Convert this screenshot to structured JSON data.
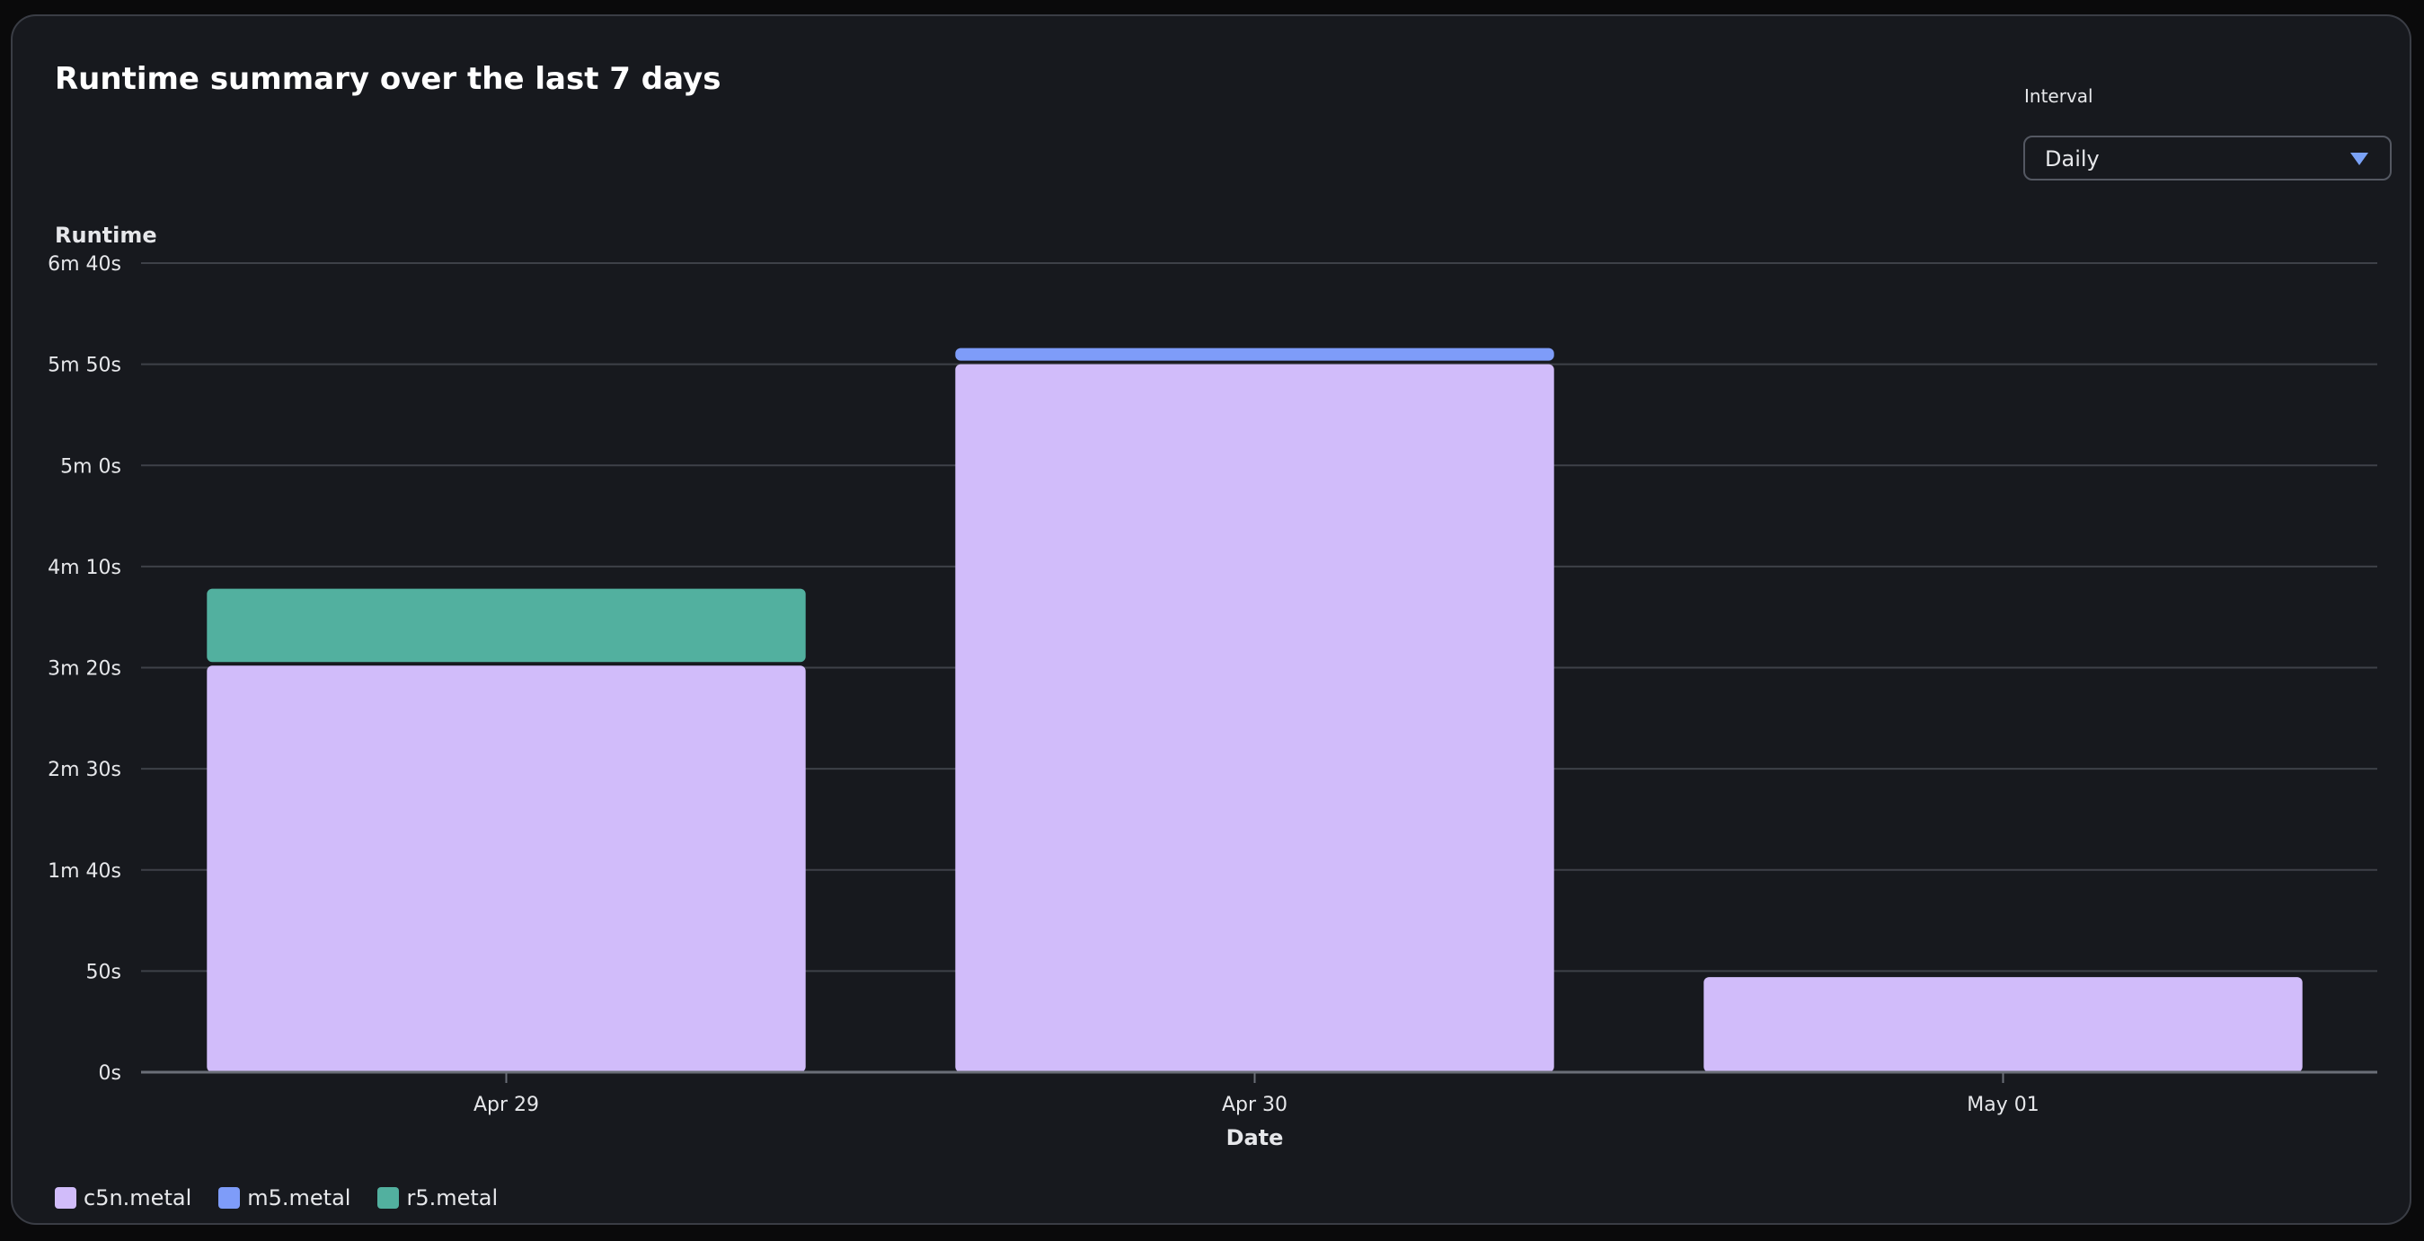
{
  "header": {
    "title": "Runtime summary over the last 7 days"
  },
  "interval": {
    "label": "Interval",
    "value": "Daily",
    "caret_icon": "caret-down-icon"
  },
  "chart_data": {
    "type": "bar",
    "stacked": true,
    "categories": [
      "Apr 29",
      "Apr 30",
      "May 01"
    ],
    "series": [
      {
        "name": "c5n.metal",
        "color": "#d1bcfa",
        "values": [
          201,
          350,
          47
        ]
      },
      {
        "name": "m5.metal",
        "color": "#7e9cf9",
        "values": [
          0,
          8,
          0
        ]
      },
      {
        "name": "r5.metal",
        "color": "#52b09f",
        "values": [
          38,
          0,
          0
        ]
      }
    ],
    "ylabel": "Runtime",
    "xlabel": "Date",
    "ylim": [
      0,
      400
    ],
    "yticks": [
      0,
      50,
      100,
      150,
      200,
      250,
      300,
      350,
      400
    ],
    "ytick_labels": [
      "0s",
      "50s",
      "1m 40s",
      "2m 30s",
      "3m 20s",
      "4m 10s",
      "5m 0s",
      "5m 50s",
      "6m 40s"
    ],
    "unit": "seconds",
    "grid": true,
    "legend_position": "bottom-left"
  }
}
